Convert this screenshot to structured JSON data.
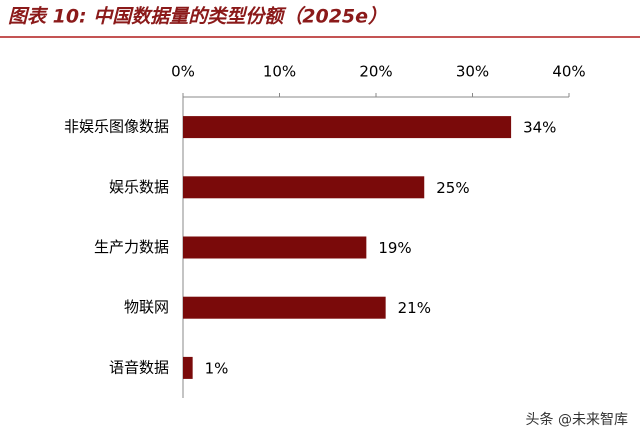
{
  "chart_data": {
    "type": "bar",
    "orientation": "horizontal",
    "title": "图表 10:  中国数据量的类型份额（2025e）",
    "categories": [
      "非娱乐图像数据",
      "娱乐数据",
      "生产力数据",
      "物联网",
      "语音数据"
    ],
    "values": [
      34,
      25,
      19,
      21,
      1
    ],
    "value_labels": [
      "34%",
      "25%",
      "19%",
      "21%",
      "1%"
    ],
    "color": "#7a0a0a",
    "xlim": [
      0,
      40
    ],
    "xticks": [
      {
        "value": 0,
        "label": "0%"
      },
      {
        "value": 10,
        "label": "10%"
      },
      {
        "value": 20,
        "label": "20%"
      },
      {
        "value": 30,
        "label": "30%"
      },
      {
        "value": 40,
        "label": "40%"
      }
    ],
    "grid": false,
    "watermark": "头条 @未来智库"
  }
}
